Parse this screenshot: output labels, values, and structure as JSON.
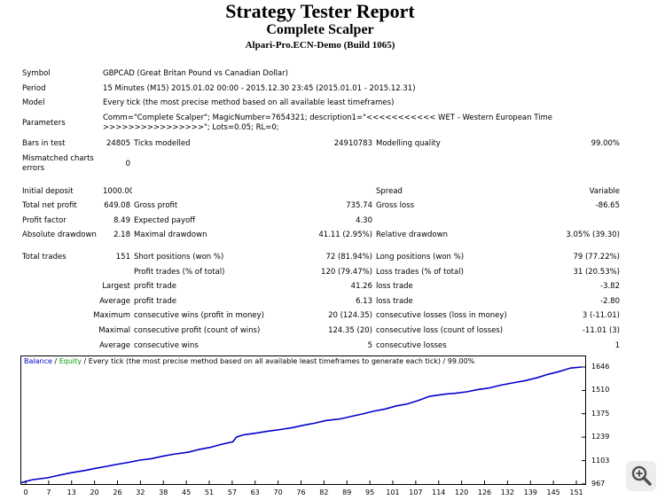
{
  "report": {
    "title": "Strategy Tester Report",
    "expert": "Complete Scalper",
    "server": "Alpari-Pro.ECN-Demo (Build 1065)"
  },
  "info": {
    "symbol_label": "Symbol",
    "symbol": "GBPCAD (Great Britan Pound vs Canadian Dollar)",
    "period_label": "Period",
    "period": "15 Minutes (M15) 2015.01.02 00:00 - 2015.12.30 23:45 (2015.01.01 - 2015.12.31)",
    "model_label": "Model",
    "model": "Every tick (the most precise method based on all available least timeframes)",
    "params_label": "Parameters",
    "params": "Comm=\"Complete Scalper\"; MagicNumber=7654321; description1=\"<<<<<<<<<<< WET - Western European Time >>>>>>>>>>>>>>>>\"; Lots=0.05; RL=0;",
    "bars_label": "Bars in test",
    "bars": "24805",
    "ticks_label": "Ticks modelled",
    "ticks": "24910783",
    "quality_label": "Modelling quality",
    "quality": "99.00%",
    "mismatch_label": "Mismatched charts errors",
    "mismatch": "0"
  },
  "results": {
    "initial_deposit_label": "Initial deposit",
    "initial_deposit": "1000.00",
    "spread_label": "Spread",
    "spread": "Variable",
    "net_profit_label": "Total net profit",
    "net_profit": "649.08",
    "gross_profit_label": "Gross profit",
    "gross_profit": "735.74",
    "gross_loss_label": "Gross loss",
    "gross_loss": "-86.65",
    "profit_factor_label": "Profit factor",
    "profit_factor": "8.49",
    "expected_payoff_label": "Expected payoff",
    "expected_payoff": "4.30",
    "abs_dd_label": "Absolute drawdown",
    "abs_dd": "2.18",
    "max_dd_label": "Maximal drawdown",
    "max_dd": "41.11 (2.95%)",
    "rel_dd_label": "Relative drawdown",
    "rel_dd": "3.05% (39.30)",
    "total_trades_label": "Total trades",
    "total_trades": "151",
    "short_label": "Short positions (won %)",
    "short": "72 (81.94%)",
    "long_label": "Long positions (won %)",
    "long": "79 (77.22%)",
    "profit_trades_label": "Profit trades (% of total)",
    "profit_trades": "120 (79.47%)",
    "loss_trades_label": "Loss trades (% of total)",
    "loss_trades": "31 (20.53%)",
    "largest_label": "Largest",
    "largest_profit_label": "profit trade",
    "largest_profit": "41.26",
    "largest_loss_label": "loss trade",
    "largest_loss": "-3.82",
    "average_label": "Average",
    "average_profit_label": "profit trade",
    "average_profit": "6.13",
    "average_loss_label": "loss trade",
    "average_loss": "-2.80",
    "maximum_label": "Maximum",
    "max_cons_wins_label": "consecutive wins (profit in money)",
    "max_cons_wins": "20 (124.35)",
    "max_cons_losses_label": "consecutive losses (loss in money)",
    "max_cons_losses": "3 (-11.01)",
    "maximal_label": "Maximal",
    "maximal_cons_profit_label": "consecutive profit (count of wins)",
    "maximal_cons_profit": "124.35 (20)",
    "maximal_cons_loss_label": "consecutive loss (count of losses)",
    "maximal_cons_loss": "-11.01 (3)",
    "avg_cons_label": "Average",
    "avg_cons_wins_label": "consecutive wins",
    "avg_cons_wins": "5",
    "avg_cons_losses_label": "consecutive losses",
    "avg_cons_losses": "1"
  },
  "legend": {
    "balance": "Balance",
    "sep": "/",
    "equity": "Equity",
    "text": "/ Every tick (the most precise method based on all available least timeframes to generate each tick)",
    "quality": "/ 99.00%"
  },
  "colors": {
    "balance": "#0000cc",
    "equity": "#009900",
    "axis": "#000000"
  },
  "icons": {
    "zoom": "zoom-in-icon"
  },
  "chart_data": {
    "type": "line",
    "x_ticks": [
      "0",
      "7",
      "13",
      "20",
      "26",
      "32",
      "38",
      "45",
      "51",
      "57",
      "63",
      "70",
      "76",
      "82",
      "89",
      "95",
      "101",
      "107",
      "114",
      "120",
      "126",
      "132",
      "139",
      "145",
      "151"
    ],
    "y_ticks": [
      "1646",
      "1510",
      "1375",
      "1239",
      "1103",
      "967"
    ],
    "xlim": [
      0,
      151
    ],
    "ylim": [
      967,
      1646
    ],
    "series": [
      {
        "name": "Balance",
        "x": [
          0,
          3,
          7,
          10,
          13,
          17,
          20,
          23,
          26,
          29,
          32,
          35,
          38,
          41,
          45,
          48,
          51,
          54,
          57,
          58,
          60,
          63,
          66,
          70,
          73,
          76,
          79,
          82,
          86,
          89,
          92,
          95,
          98,
          101,
          104,
          107,
          110,
          114,
          117,
          120,
          123,
          126,
          129,
          132,
          136,
          139,
          142,
          145,
          148,
          151
        ],
        "y": [
          975,
          992,
          1003,
          1017,
          1031,
          1045,
          1058,
          1070,
          1082,
          1093,
          1106,
          1114,
          1128,
          1140,
          1152,
          1168,
          1180,
          1198,
          1212,
          1240,
          1253,
          1262,
          1272,
          1284,
          1294,
          1308,
          1320,
          1335,
          1345,
          1360,
          1374,
          1390,
          1402,
          1420,
          1432,
          1452,
          1476,
          1488,
          1494,
          1502,
          1515,
          1524,
          1540,
          1552,
          1568,
          1584,
          1604,
          1620,
          1640,
          1646
        ]
      }
    ]
  }
}
